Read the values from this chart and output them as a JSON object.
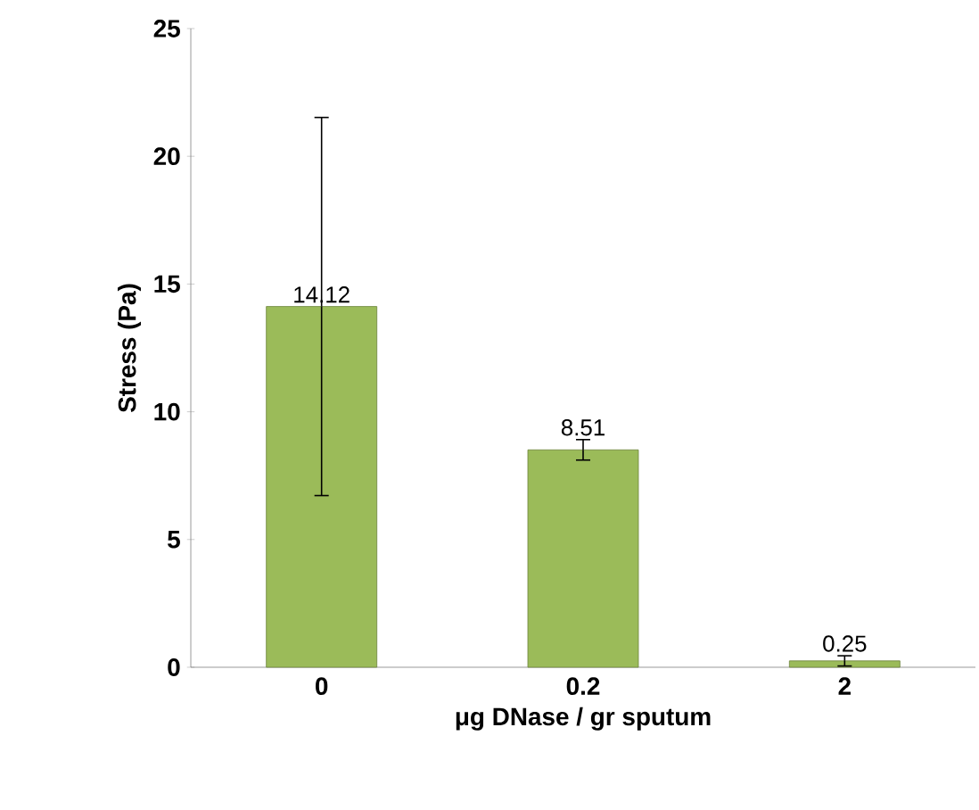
{
  "chart_data": {
    "type": "bar",
    "xlabel": "μg DNase / gr sputum",
    "ylabel": "Stress (Pa)",
    "categories": [
      "0",
      "0.2",
      "2"
    ],
    "values": [
      14.12,
      8.51,
      0.25
    ],
    "errors": [
      7.4,
      0.4,
      0.2
    ],
    "value_labels": [
      "14.12",
      "8.51",
      "0.25"
    ],
    "color": "#9bbb59",
    "ylim": [
      0,
      25
    ],
    "yticks": [
      0,
      5,
      10,
      15,
      20,
      25
    ],
    "grid": false
  }
}
